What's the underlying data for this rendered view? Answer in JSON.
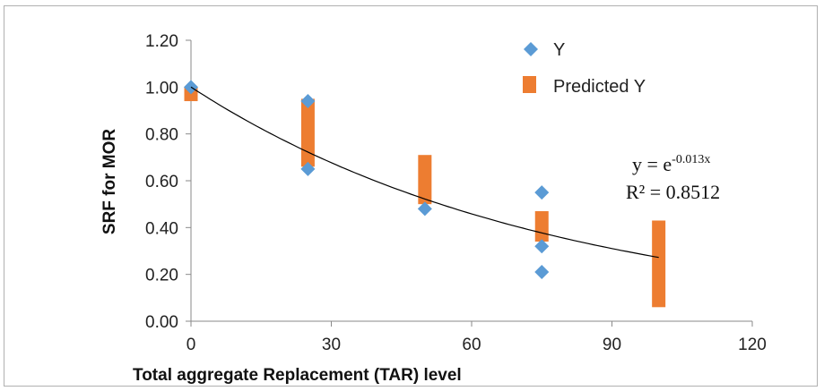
{
  "chart_data": {
    "type": "scatter",
    "title": "",
    "xlabel": "Total aggregate Replacement (TAR) level",
    "ylabel": "SRF for MOR",
    "xlim": [
      0,
      120
    ],
    "ylim": [
      0,
      1.2
    ],
    "x_ticks": [
      "0",
      "30",
      "60",
      "90",
      "120"
    ],
    "y_ticks": [
      "0.00",
      "0.20",
      "0.40",
      "0.60",
      "0.80",
      "1.00",
      "1.20"
    ],
    "grid": false,
    "legend_position": "top-right",
    "series": [
      {
        "name": "Y",
        "marker": "diamond",
        "color": "#5b9bd5",
        "points": [
          [
            0,
            1.0
          ],
          [
            25,
            0.94
          ],
          [
            25,
            0.65
          ],
          [
            50,
            0.48
          ],
          [
            75,
            0.55
          ],
          [
            75,
            0.32
          ],
          [
            75,
            0.21
          ]
        ]
      },
      {
        "name": "Predicted Y",
        "marker": "bar",
        "color": "#ed7d31",
        "ranges": [
          [
            0,
            0.94,
            1.0
          ],
          [
            25,
            0.66,
            0.95
          ],
          [
            50,
            0.5,
            0.71
          ],
          [
            75,
            0.34,
            0.47
          ],
          [
            100,
            0.06,
            0.43
          ]
        ]
      }
    ],
    "trendline": {
      "type": "exponential",
      "color": "#000000",
      "equation_base": "y = e",
      "equation_exponent": "-0.013x",
      "r_squared": "R² = 0.8512"
    }
  }
}
